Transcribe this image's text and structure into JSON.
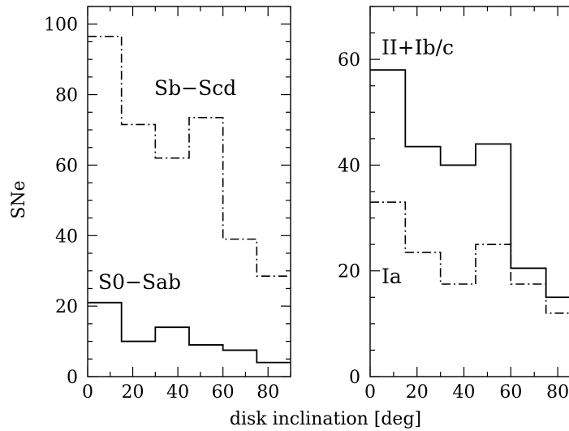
{
  "chart_data": [
    {
      "type": "histogram",
      "panel": "left",
      "xlabel": "disk inclination [deg]",
      "ylabel": "SNe",
      "xlim": [
        0,
        90
      ],
      "ylim": [
        0,
        105
      ],
      "x_ticks": [
        0,
        20,
        40,
        60,
        80
      ],
      "y_ticks": [
        0,
        20,
        40,
        60,
        80,
        100
      ],
      "bin_edges": [
        0,
        15,
        30,
        45,
        60,
        75,
        90
      ],
      "series": [
        {
          "name": "Sb−Scd",
          "line_style": "dash-dot",
          "values": [
            96.5,
            71.5,
            62,
            73.5,
            39,
            28.5
          ]
        },
        {
          "name": "S0−Sab",
          "line_style": "solid",
          "values": [
            21,
            10,
            14,
            9,
            7.5,
            4
          ]
        }
      ]
    },
    {
      "type": "histogram",
      "panel": "right",
      "xlabel": "disk inclination [deg]",
      "xlim": [
        0,
        90
      ],
      "ylim": [
        0,
        70
      ],
      "x_ticks": [
        0,
        20,
        40,
        60,
        80
      ],
      "y_ticks": [
        0,
        20,
        40,
        60
      ],
      "bin_edges": [
        0,
        15,
        30,
        45,
        60,
        75,
        90
      ],
      "series": [
        {
          "name": "II+Ib/c",
          "line_style": "solid",
          "values": [
            58,
            43.5,
            40,
            44,
            20.5,
            15
          ]
        },
        {
          "name": "Ia",
          "line_style": "dash-dot",
          "values": [
            33,
            23.5,
            17.5,
            25,
            17.5,
            12
          ]
        }
      ]
    }
  ]
}
